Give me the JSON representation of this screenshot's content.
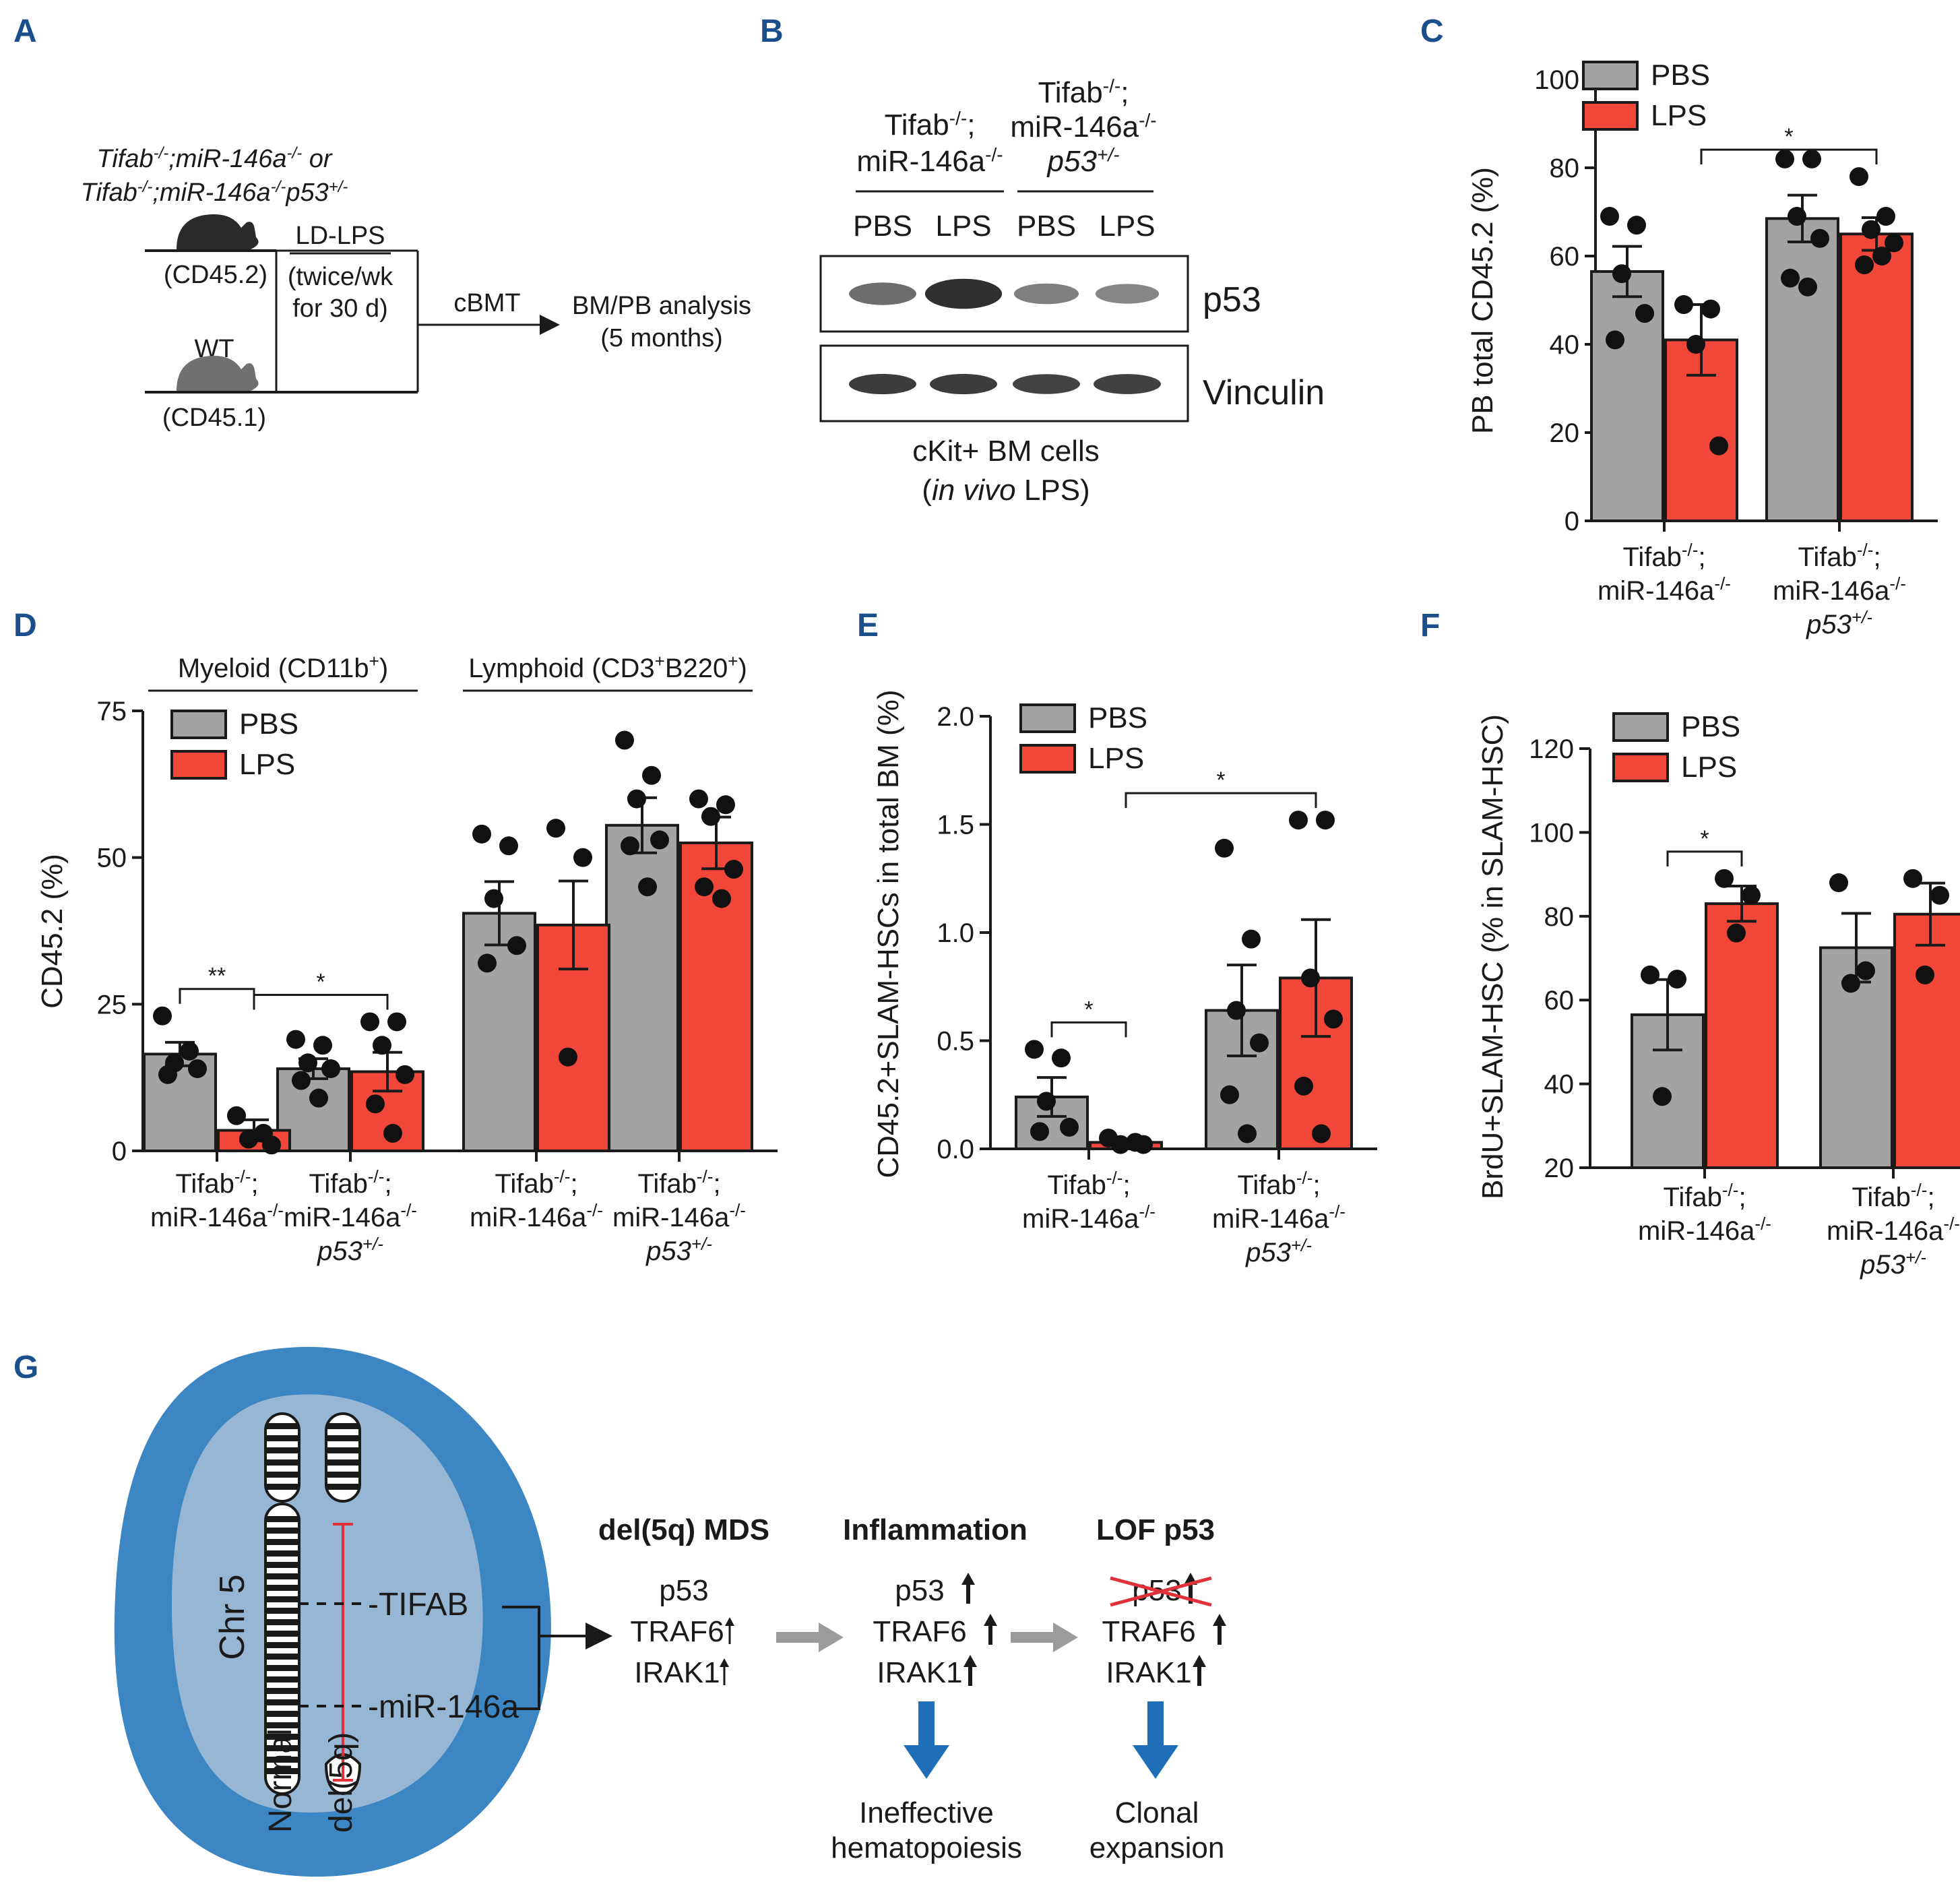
{
  "colors": {
    "pbs": "#a3a3a5",
    "lps": "#f0473a",
    "panel_label": "#1b4f8c",
    "cell_outer": "#3c86c4",
    "cell_inner": "#97b6d3",
    "inhibit": "#e0303a",
    "arrow_gray": "#9b9b9b",
    "arrow_blue": "#1f6fb8"
  },
  "panels": {
    "A": {
      "label": "A",
      "donor_genotype_line1": "Tifab-/-;miR-146a-/- or",
      "donor_genotype_line2": "Tifab-/-;miR-146a-/-p53+/-",
      "donor_marker": "(CD45.2)",
      "treatment": "LD-LPS",
      "schedule_line1": "(twice/wk",
      "schedule_line2": "for 30 d)",
      "competitor": "WT",
      "competitor_marker": "(CD45.1)",
      "procedure": "cBMT",
      "analysis_line1": "BM/PB analysis",
      "analysis_line2": "(5 months)",
      "mouse_icon": "mouse-silhouette-icon"
    },
    "B": {
      "label": "B",
      "group1_line1": "Tifab-/-;",
      "group1_line2": "miR-146a-/-",
      "group2_line1": "Tifab-/-;",
      "group2_line2": "miR-146a-/-",
      "group2_line3": "p53+/-",
      "lanes": [
        "PBS",
        "LPS",
        "PBS",
        "LPS"
      ],
      "blot_rows": [
        "p53",
        "Vinculin"
      ],
      "p53_band_intensity": [
        0.55,
        0.95,
        0.45,
        0.4
      ],
      "vinculin_band_intensity": [
        0.85,
        0.85,
        0.8,
        0.82
      ],
      "caption_line1": "cKit+ BM cells",
      "caption_in_vivo": "in vivo",
      "caption_lps": " LPS)",
      "caption_open": "("
    },
    "G": {
      "label": "G",
      "chr_label": "Chr 5",
      "normal_label": "Normal",
      "del_label": "del(5q)",
      "gene1": "-TIFAB",
      "gene2": "-miR-146a",
      "stage1": {
        "title": "del(5q) MDS",
        "genes": [
          "p53",
          "TRAF6",
          "IRAK1"
        ]
      },
      "stage2": {
        "title": "Inflammation",
        "genes": [
          "p53",
          "TRAF6",
          "IRAK1"
        ],
        "outcome_line1": "Ineffective",
        "outcome_line2": "hematopoiesis"
      },
      "stage3": {
        "title": "LOF p53",
        "genes": [
          "p53",
          "TRAF6",
          "IRAK1"
        ],
        "outcome_line1": "Clonal",
        "outcome_line2": "expansion"
      },
      "up_arrow": "up-arrow-icon"
    }
  },
  "chart_data": [
    {
      "panel": "C",
      "type": "bar",
      "ylabel": "PB total CD45.2 (%)",
      "ylim": [
        0,
        100
      ],
      "yticks": [
        0,
        20,
        40,
        60,
        80,
        100
      ],
      "legend": [
        "PBS",
        "LPS"
      ],
      "legend_position": "top-left",
      "categories": [
        {
          "line1": "Tifab-/-;",
          "line2": "miR-146a-/-",
          "line3": ""
        },
        {
          "line1": "Tifab-/-;",
          "line2": "miR-146a-/-",
          "line3": "p53+/-"
        }
      ],
      "series": [
        {
          "name": "PBS",
          "means": [
            56.5,
            68.5
          ],
          "sem": [
            5.7,
            5.3
          ],
          "points": [
            [
              69,
              67,
              56,
              47,
              41
            ],
            [
              82,
              82,
              69,
              64,
              55,
              53
            ]
          ]
        },
        {
          "name": "LPS",
          "means": [
            41,
            65
          ],
          "sem": [
            8.0,
            3.7
          ],
          "points": [
            [
              49,
              48,
              40,
              17
            ],
            [
              78,
              69,
              66,
              63,
              58,
              60
            ]
          ]
        }
      ],
      "significance": [
        {
          "text": "*",
          "from": [
            0,
            "LPS"
          ],
          "to": [
            1,
            "LPS"
          ]
        }
      ]
    },
    {
      "panel": "D",
      "type": "bar",
      "ylabel": "CD45.2 (%)",
      "ylim": [
        0,
        75
      ],
      "yticks": [
        0,
        25,
        50,
        75
      ],
      "legend": [
        "PBS",
        "LPS"
      ],
      "legend_position": "top-left",
      "group_headers": [
        "Myeloid (CD11b+)",
        "Lymphoid (CD3+B220+)"
      ],
      "categories": [
        {
          "line1": "Tifab-/-;",
          "line2": "miR-146a-/-",
          "line3": ""
        },
        {
          "line1": "Tifab-/-;",
          "line2": "miR-146a-/-",
          "line3": "p53+/-"
        },
        {
          "line1": "Tifab-/-;",
          "line2": "miR-146a-/-",
          "line3": ""
        },
        {
          "line1": "Tifab-/-;",
          "line2": "miR-146a-/-",
          "line3": "p53+/-"
        }
      ],
      "series": [
        {
          "name": "PBS",
          "means": [
            16.5,
            14,
            40.5,
            55.5
          ],
          "sem": [
            2,
            1.7,
            5.4,
            4.7
          ],
          "points": [
            [
              23,
              17,
              15,
              14,
              13
            ],
            [
              19,
              18,
              15,
              14,
              12,
              9
            ],
            [
              54,
              52,
              43,
              35,
              32
            ],
            [
              70,
              64,
              60,
              53,
              52,
              45
            ]
          ]
        },
        {
          "name": "LPS",
          "means": [
            3.5,
            13.5,
            38.5,
            52.5
          ],
          "sem": [
            1.8,
            3.3,
            7.5,
            4.4
          ],
          "points": [
            [
              6,
              3,
              2,
              1
            ],
            [
              22,
              22,
              18,
              13,
              8,
              3
            ],
            [
              55,
              50,
              16
            ],
            [
              60,
              59,
              57,
              48,
              45,
              43
            ]
          ]
        }
      ],
      "significance": [
        {
          "text": "**",
          "from": [
            0,
            "PBS"
          ],
          "to": [
            0,
            "LPS"
          ]
        },
        {
          "text": "*",
          "from": [
            0,
            "LPS"
          ],
          "to": [
            1,
            "LPS"
          ]
        }
      ]
    },
    {
      "panel": "E",
      "type": "bar",
      "ylabel": "CD45.2+SLAM-HSCs in total BM (%)",
      "ylim": [
        0,
        2
      ],
      "yticks": [
        0.0,
        0.5,
        1.0,
        1.5,
        2.0
      ],
      "ytick_labels": [
        "0.0",
        "0.5",
        "1.0",
        "1.5",
        "2.0"
      ],
      "legend": [
        "PBS",
        "LPS"
      ],
      "legend_position": "top-left",
      "categories": [
        {
          "line1": "Tifab-/-;",
          "line2": "miR-146a-/-",
          "line3": ""
        },
        {
          "line1": "Tifab-/-;",
          "line2": "miR-146a-/-",
          "line3": "p53+/-"
        }
      ],
      "series": [
        {
          "name": "PBS",
          "means": [
            0.24,
            0.64
          ],
          "sem": [
            0.09,
            0.21
          ],
          "points": [
            [
              0.46,
              0.42,
              0.22,
              0.1,
              0.08
            ],
            [
              1.39,
              0.97,
              0.64,
              0.49,
              0.25,
              0.07
            ]
          ]
        },
        {
          "name": "LPS",
          "means": [
            0.03,
            0.79
          ],
          "sem": [
            0.01,
            0.27
          ],
          "points": [
            [
              0.05,
              0.03,
              0.02,
              0.02
            ],
            [
              1.52,
              1.52,
              0.79,
              0.6,
              0.29,
              0.07
            ]
          ]
        }
      ],
      "significance": [
        {
          "text": "*",
          "from": [
            0,
            "PBS"
          ],
          "to": [
            0,
            "LPS"
          ]
        },
        {
          "text": "*",
          "from": [
            0,
            "LPS"
          ],
          "to": [
            1,
            "LPS"
          ]
        }
      ]
    },
    {
      "panel": "F",
      "type": "bar",
      "ylabel": "BrdU+SLAM-HSC (% in SLAM-HSC)",
      "ylim": [
        20,
        120
      ],
      "yticks": [
        20,
        40,
        60,
        80,
        100,
        120
      ],
      "legend": [
        "PBS",
        "LPS"
      ],
      "legend_position": "top-left",
      "categories": [
        {
          "line1": "Tifab-/-;",
          "line2": "miR-146a-/-",
          "line3": ""
        },
        {
          "line1": "Tifab-/-;",
          "line2": "miR-146a-/-",
          "line3": "p53+/-"
        }
      ],
      "series": [
        {
          "name": "PBS",
          "means": [
            56.5,
            72.5
          ],
          "sem": [
            8.4,
            8.2
          ],
          "points": [
            [
              66,
              65,
              37
            ],
            [
              88,
              67,
              64
            ]
          ]
        },
        {
          "name": "LPS",
          "means": [
            83,
            80.5
          ],
          "sem": [
            4.2,
            7.4
          ],
          "points": [
            [
              89,
              85,
              76
            ],
            [
              89,
              85,
              66
            ]
          ]
        }
      ],
      "significance": [
        {
          "text": "*",
          "from": [
            0,
            "PBS"
          ],
          "to": [
            0,
            "LPS"
          ]
        }
      ]
    }
  ]
}
